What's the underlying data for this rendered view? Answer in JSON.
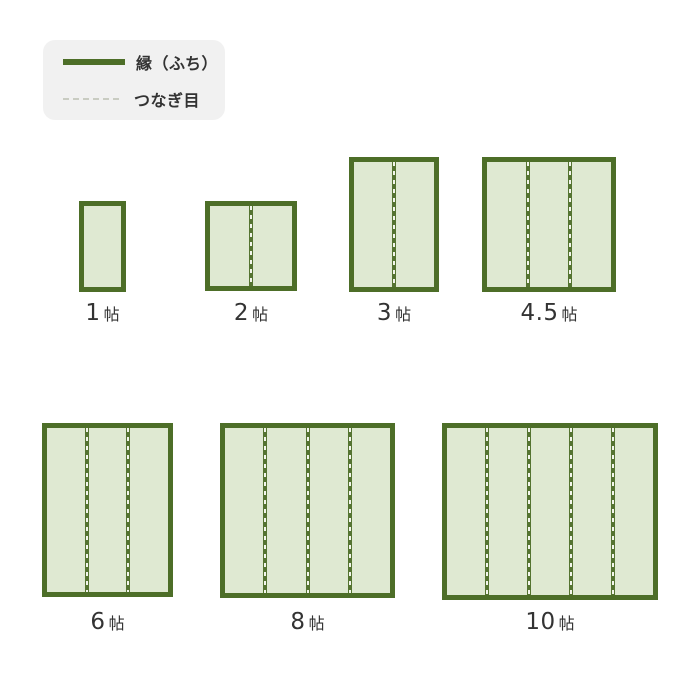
{
  "legend": {
    "border_label": "縁（ふち）",
    "seam_label": "つなぎ目"
  },
  "mats": [
    {
      "id": "1jo",
      "size": "1",
      "unit": "帖",
      "panels": 1
    },
    {
      "id": "2jo",
      "size": "2",
      "unit": "帖",
      "panels": 2
    },
    {
      "id": "3jo",
      "size": "3",
      "unit": "帖",
      "panels": 2
    },
    {
      "id": "4_5jo",
      "size": "4.5",
      "unit": "帖",
      "panels": 3
    },
    {
      "id": "6jo",
      "size": "6",
      "unit": "帖",
      "panels": 3
    },
    {
      "id": "8jo",
      "size": "8",
      "unit": "帖",
      "panels": 4
    },
    {
      "id": "10jo",
      "size": "10",
      "unit": "帖",
      "panels": 5
    }
  ],
  "colors": {
    "page_bg": "#ffffff",
    "legend_bg": "#f1f1f1",
    "legend_dash": "#c9ccc2",
    "mat_border": "#4d6e28",
    "mat_fill": "#dfe9d2",
    "seam_green": "#557431",
    "seam_stitch": "#f3f6ec",
    "label_text": "#333333"
  }
}
